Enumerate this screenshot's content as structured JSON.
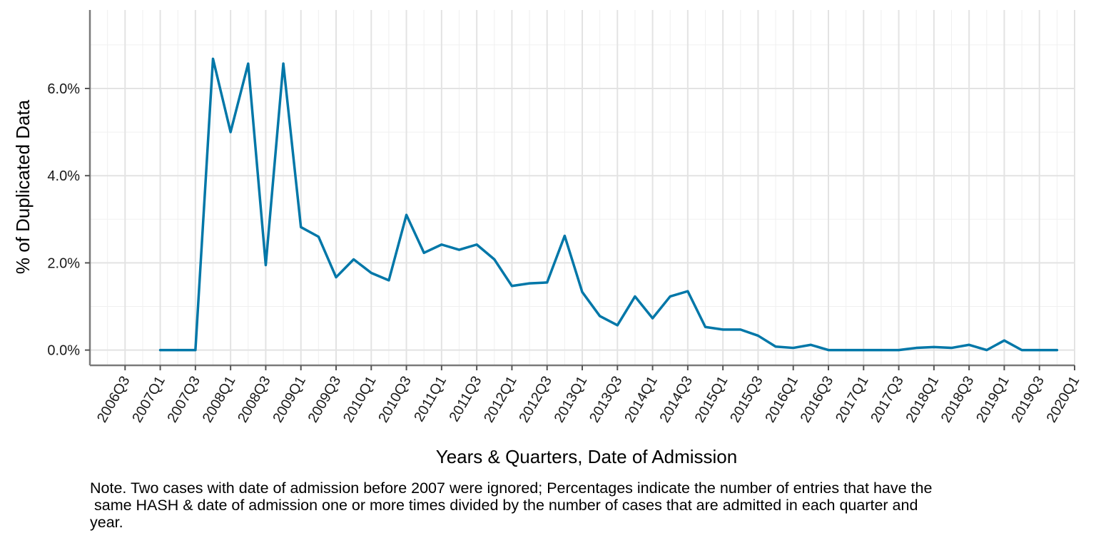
{
  "chart_data": {
    "type": "line",
    "title": "",
    "xlabel": "Years & Quarters, Date of Admission",
    "ylabel": "% of Duplicated Data",
    "x_ticks": [
      "2006Q3",
      "2007Q1",
      "2007Q3",
      "2008Q1",
      "2008Q3",
      "2009Q1",
      "2009Q3",
      "2010Q1",
      "2010Q3",
      "2011Q1",
      "2011Q3",
      "2012Q1",
      "2012Q3",
      "2013Q1",
      "2013Q3",
      "2014Q1",
      "2014Q3",
      "2015Q1",
      "2015Q3",
      "2016Q1",
      "2016Q3",
      "2017Q1",
      "2017Q3",
      "2018Q1",
      "2018Q3",
      "2019Q1",
      "2019Q3",
      "2020Q1"
    ],
    "y_ticks": [
      "0.0%",
      "2.0%",
      "4.0%",
      "6.0%"
    ],
    "y_tick_values": [
      0,
      2,
      4,
      6
    ],
    "ylim": [
      -0.35,
      7.8
    ],
    "xlim": [
      "2006Q1",
      "2020Q1"
    ],
    "grid": true,
    "legend": "none",
    "series": [
      {
        "color": "#0077A8",
        "x": [
          "2007Q1",
          "2007Q2",
          "2007Q3",
          "2007Q4",
          "2008Q1",
          "2008Q2",
          "2008Q3",
          "2008Q4",
          "2009Q1",
          "2009Q2",
          "2009Q3",
          "2009Q4",
          "2010Q1",
          "2010Q2",
          "2010Q3",
          "2010Q4",
          "2011Q1",
          "2011Q2",
          "2011Q3",
          "2011Q4",
          "2012Q1",
          "2012Q2",
          "2012Q3",
          "2012Q4",
          "2013Q1",
          "2013Q2",
          "2013Q3",
          "2013Q4",
          "2014Q1",
          "2014Q2",
          "2014Q3",
          "2014Q4",
          "2015Q1",
          "2015Q2",
          "2015Q3",
          "2015Q4",
          "2016Q1",
          "2016Q2",
          "2016Q3",
          "2016Q4",
          "2017Q1",
          "2017Q2",
          "2017Q3",
          "2017Q4",
          "2018Q1",
          "2018Q2",
          "2018Q3",
          "2018Q4",
          "2019Q1",
          "2019Q2",
          "2019Q3",
          "2019Q4"
        ],
        "values": [
          0.0,
          0.0,
          0.0,
          6.68,
          5.0,
          6.57,
          1.95,
          6.57,
          2.82,
          2.6,
          1.67,
          2.08,
          1.77,
          1.6,
          3.1,
          2.23,
          2.42,
          2.3,
          2.42,
          2.08,
          1.47,
          1.53,
          1.55,
          2.62,
          1.33,
          0.78,
          0.57,
          1.23,
          0.73,
          1.23,
          1.35,
          0.53,
          0.47,
          0.47,
          0.33,
          0.08,
          0.05,
          0.12,
          0.0,
          0.0,
          0.0,
          0.0,
          0.0,
          0.05,
          0.07,
          0.05,
          0.12,
          0.0,
          0.22,
          0.0,
          0.0,
          0.0
        ]
      }
    ]
  },
  "note": "Note. Two cases with date of admission before 2007 were ignored; Percentages indicate the number of entries that have the\n same HASH & date of admission one or more times divided by the number of cases that are admitted in each quarter and\nyear."
}
